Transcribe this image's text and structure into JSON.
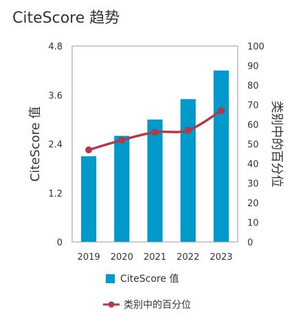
{
  "title": "CiteScore 趋势",
  "colors": {
    "bar": "#0099cc",
    "line": "#b03a48",
    "axis": "#9a9a9a",
    "text": "#333333"
  },
  "chart_data": {
    "type": "bar",
    "categories": [
      "2019",
      "2020",
      "2021",
      "2022",
      "2023"
    ],
    "series": [
      {
        "name": "CiteScore 值",
        "type": "bar",
        "axis": "left",
        "values": [
          2.1,
          2.6,
          3.0,
          3.5,
          4.2
        ]
      },
      {
        "name": "类别中的百分位",
        "type": "line",
        "axis": "right",
        "values": [
          47,
          52,
          56,
          57,
          67
        ]
      }
    ],
    "ylabel": "CiteScore 值",
    "y2label": "类别中的百分位",
    "ylim": [
      0,
      4.8
    ],
    "y2lim": [
      0,
      100
    ],
    "yticks": [
      "0",
      "1.2",
      "2.4",
      "3.6",
      "4.8"
    ],
    "y2ticks": [
      "0",
      "10",
      "20",
      "30",
      "40",
      "50",
      "60",
      "70",
      "80",
      "90",
      "100"
    ],
    "grid": false,
    "legend": "bottom"
  }
}
